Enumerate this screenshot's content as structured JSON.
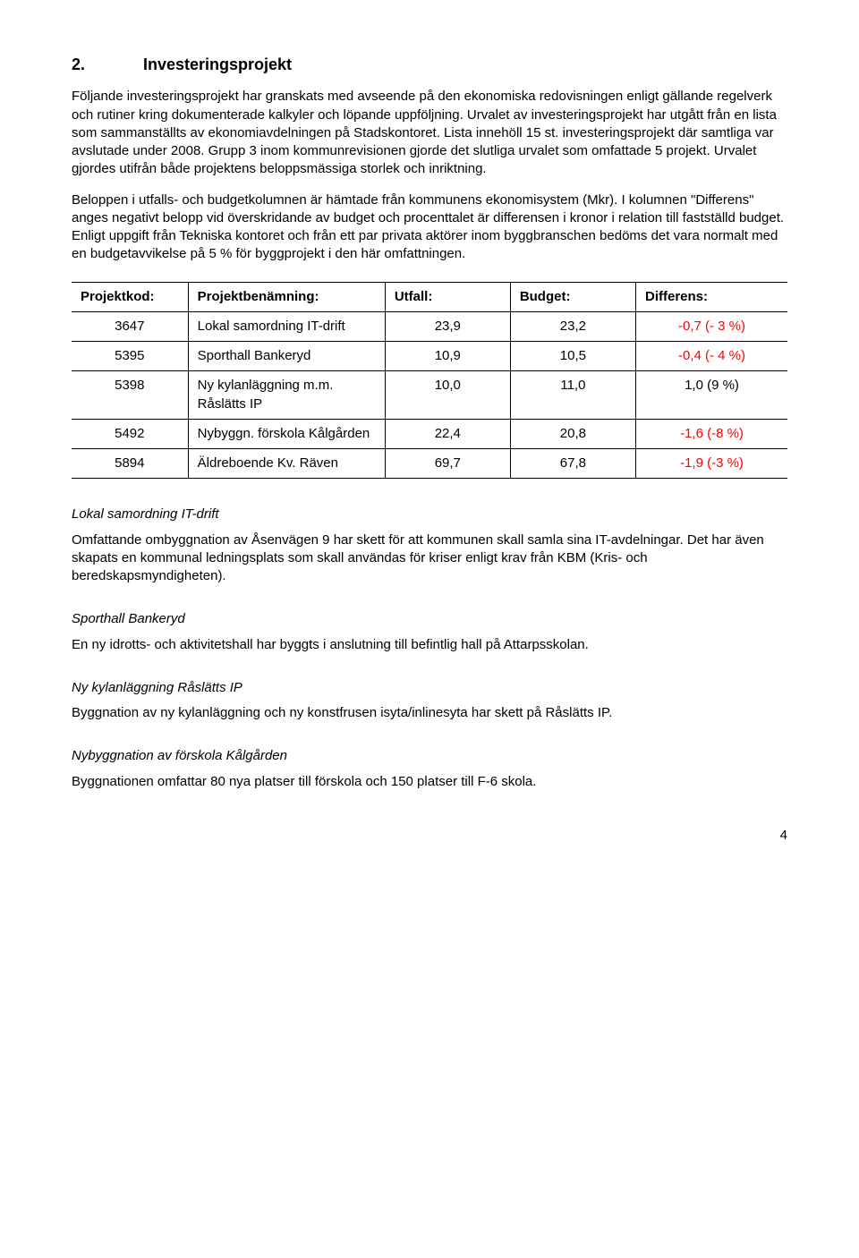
{
  "heading": {
    "number": "2.",
    "title": "Investeringsprojekt"
  },
  "intro_p1": "Följande investeringsprojekt har granskats med avseende på den ekonomiska redovisningen enligt gällande regelverk och rutiner kring dokumenterade kalkyler och löpande uppföljning. Urvalet av investeringsprojekt har utgått från en lista som sammanställts av ekonomiavdelningen på Stadskontoret. Lista innehöll 15 st. investeringsprojekt där samtliga var avslutade under 2008. Grupp 3 inom kommunrevisionen gjorde det slutliga urvalet som omfattade 5 projekt. Urvalet gjordes utifrån både projektens beloppsmässiga storlek och inriktning.",
  "intro_p2": "Beloppen i utfalls- och budgetkolumnen är hämtade från kommunens ekonomisystem (Mkr). I kolumnen \"Differens\" anges negativt belopp vid överskridande av budget och procenttalet är differensen i kronor i relation till fastställd budget. Enligt uppgift från Tekniska kontoret och från ett par privata aktörer inom byggbranschen bedöms det vara normalt med en budgetavvikelse på 5 % för byggprojekt i den här omfattningen.",
  "table": {
    "headers": {
      "code": "Projektkod:",
      "name": "Projektbenämning:",
      "utfall": "Utfall:",
      "budget": "Budget:",
      "diff": "Differens:"
    },
    "rows": [
      {
        "code": "3647",
        "name": "Lokal samordning IT-drift",
        "utfall": "23,9",
        "budget": "23,2",
        "diff": "-0,7 (- 3 %)",
        "neg": true
      },
      {
        "code": "5395",
        "name": "Sporthall Bankeryd",
        "utfall": "10,9",
        "budget": "10,5",
        "diff": "-0,4 (- 4 %)",
        "neg": true
      },
      {
        "code": "5398",
        "name": "Ny kylanläggning m.m. Råslätts IP",
        "utfall": "10,0",
        "budget": "11,0",
        "diff": "1,0 (9 %)",
        "neg": false
      },
      {
        "code": "5492",
        "name": "Nybyggn. förskola Kålgården",
        "utfall": "22,4",
        "budget": "20,8",
        "diff": "-1,6 (-8 %)",
        "neg": true
      },
      {
        "code": "5894",
        "name": "Äldreboende Kv. Räven",
        "utfall": "69,7",
        "budget": "67,8",
        "diff": "-1,9 (-3 %)",
        "neg": true
      }
    ]
  },
  "sections": [
    {
      "title": "Lokal samordning IT-drift",
      "body": "Omfattande ombyggnation av Åsenvägen 9 har skett för att kommunen skall samla sina IT-avdelningar. Det har även skapats en kommunal ledningsplats som skall användas för kriser enligt krav från KBM (Kris- och beredskapsmyndigheten)."
    },
    {
      "title": "Sporthall Bankeryd",
      "body": "En ny idrotts- och aktivitetshall har byggts i anslutning till befintlig hall på Attarpsskolan."
    },
    {
      "title": "Ny kylanläggning Råslätts IP",
      "body": "Byggnation av ny kylanläggning och ny konstfrusen isyta/inlinesyta har skett på Råslätts IP."
    },
    {
      "title": "Nybyggnation av förskola Kålgården",
      "body": "Byggnationen omfattar 80 nya platser till förskola och 150 platser till F-6 skola."
    }
  ],
  "page_number": "4"
}
